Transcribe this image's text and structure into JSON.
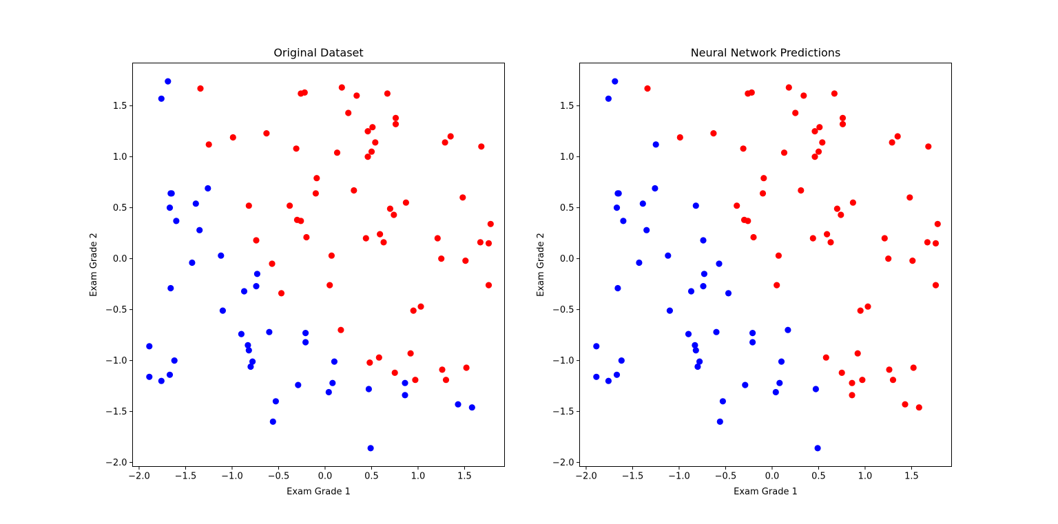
{
  "colors": {
    "class_0": "#0000ff",
    "class_1": "#ff0000",
    "axes": "#000000",
    "background": "#ffffff"
  },
  "chart_data": [
    {
      "type": "scatter",
      "title": "Original Dataset",
      "xlabel": "Exam Grade 1",
      "ylabel": "Exam Grade 2",
      "xlim": [
        -2.07,
        1.93
      ],
      "ylim": [
        -2.04,
        1.92
      ],
      "xticks": [
        -2.0,
        -1.5,
        -1.0,
        -0.5,
        0.0,
        0.5,
        1.0,
        1.5
      ],
      "xtick_labels": [
        "−2.0",
        "−1.5",
        "−1.0",
        "−0.5",
        "0.0",
        "0.5",
        "1.0",
        "1.5"
      ],
      "yticks": [
        -2.0,
        -1.5,
        -1.0,
        -0.5,
        0.0,
        0.5,
        1.0,
        1.5
      ],
      "ytick_labels": [
        "−2.0",
        "−1.5",
        "−1.0",
        "−0.5",
        "0.0",
        "0.5",
        "1.0",
        "1.5"
      ],
      "grid": false,
      "series": [
        {
          "color": "#0000ff",
          "x": [
            -1.69,
            -1.76,
            -1.65,
            -1.66,
            -1.67,
            -1.6,
            -1.39,
            -1.26,
            -1.35,
            -1.43,
            -1.12,
            -1.66,
            -1.1,
            -1.89,
            -1.89,
            -1.76,
            -1.67,
            -1.62,
            -0.87,
            -0.73,
            -0.74,
            -0.9,
            -0.83,
            -0.82,
            -0.78,
            -0.8,
            -0.6,
            -0.53,
            -0.56,
            -0.21,
            -0.21,
            -0.29,
            0.1,
            0.08,
            0.04,
            0.47,
            0.49,
            0.86,
            0.86,
            1.43,
            1.58
          ],
          "y": [
            1.74,
            1.57,
            0.64,
            0.64,
            0.5,
            0.37,
            0.54,
            0.69,
            0.28,
            -0.04,
            0.03,
            -0.29,
            -0.51,
            -0.86,
            -1.16,
            -1.2,
            -1.14,
            -1.0,
            -0.32,
            -0.15,
            -0.27,
            -0.74,
            -0.85,
            -0.9,
            -1.01,
            -1.06,
            -0.72,
            -1.4,
            -1.6,
            -0.73,
            -0.82,
            -1.24,
            -1.01,
            -1.22,
            -1.31,
            -1.28,
            -1.86,
            -1.22,
            -1.34,
            -1.43,
            -1.46
          ]
        },
        {
          "color": "#ff0000",
          "x": [
            -1.34,
            -1.25,
            -0.99,
            -0.63,
            -0.31,
            -0.26,
            -0.22,
            0.18,
            0.34,
            0.25,
            0.67,
            0.76,
            0.76,
            0.46,
            0.51,
            0.54,
            0.5,
            0.46,
            0.13,
            -0.09,
            -0.1,
            -0.82,
            -0.38,
            -0.3,
            -0.26,
            -0.74,
            -0.2,
            -0.57,
            -0.47,
            0.07,
            0.05,
            0.31,
            0.44,
            0.59,
            0.63,
            0.7,
            0.74,
            0.87,
            1.29,
            1.35,
            1.68,
            1.48,
            1.21,
            1.25,
            1.51,
            1.67,
            1.76,
            1.78,
            1.76,
            0.17,
            0.48,
            0.58,
            0.75,
            0.92,
            0.95,
            1.03,
            0.97,
            1.26,
            1.3,
            1.52
          ],
          "y": [
            1.67,
            1.12,
            1.19,
            1.23,
            1.08,
            1.62,
            1.63,
            1.68,
            1.6,
            1.43,
            1.62,
            1.38,
            1.32,
            1.25,
            1.29,
            1.14,
            1.05,
            1.0,
            1.04,
            0.79,
            0.64,
            0.52,
            0.52,
            0.38,
            0.37,
            0.18,
            0.21,
            -0.05,
            -0.34,
            0.03,
            -0.26,
            0.67,
            0.2,
            0.24,
            0.16,
            0.49,
            0.43,
            0.55,
            1.14,
            1.2,
            1.1,
            0.6,
            0.2,
            0.0,
            -0.02,
            0.16,
            0.15,
            0.34,
            -0.26,
            -0.7,
            -1.02,
            -0.97,
            -1.12,
            -0.93,
            -0.51,
            -0.47,
            -1.19,
            -1.09,
            -1.19,
            -1.07
          ]
        }
      ]
    },
    {
      "type": "scatter",
      "title": "Neural Network Predictions",
      "xlabel": "Exam Grade 1",
      "ylabel": "Exam Grade 2",
      "xlim": [
        -2.07,
        1.93
      ],
      "ylim": [
        -2.04,
        1.92
      ],
      "xticks": [
        -2.0,
        -1.5,
        -1.0,
        -0.5,
        0.0,
        0.5,
        1.0,
        1.5
      ],
      "xtick_labels": [
        "−2.0",
        "−1.5",
        "−1.0",
        "−0.5",
        "0.0",
        "0.5",
        "1.0",
        "1.5"
      ],
      "yticks": [
        -2.0,
        -1.5,
        -1.0,
        -0.5,
        0.0,
        0.5,
        1.0,
        1.5
      ],
      "ytick_labels": [
        "−2.0",
        "−1.5",
        "−1.0",
        "−0.5",
        "0.0",
        "0.5",
        "1.0",
        "1.5"
      ],
      "grid": false,
      "series": [
        {
          "color": "#0000ff",
          "x": [
            -1.69,
            -1.76,
            -1.65,
            -1.66,
            -1.67,
            -1.6,
            -1.39,
            -1.26,
            -1.35,
            -1.43,
            -1.12,
            -1.66,
            -1.1,
            -1.89,
            -1.89,
            -1.76,
            -1.67,
            -1.62,
            -0.87,
            -0.73,
            -0.74,
            -0.9,
            -0.83,
            -0.82,
            -0.78,
            -0.8,
            -0.6,
            -0.53,
            -0.56,
            -0.21,
            -0.21,
            -0.29,
            0.1,
            0.08,
            0.04,
            0.47,
            0.49,
            -1.25,
            -0.82,
            -0.74,
            -0.57,
            -0.47,
            0.17
          ],
          "y": [
            1.74,
            1.57,
            0.64,
            0.64,
            0.5,
            0.37,
            0.54,
            0.69,
            0.28,
            -0.04,
            0.03,
            -0.29,
            -0.51,
            -0.86,
            -1.16,
            -1.2,
            -1.14,
            -1.0,
            -0.32,
            -0.15,
            -0.27,
            -0.74,
            -0.85,
            -0.9,
            -1.01,
            -1.06,
            -0.72,
            -1.4,
            -1.6,
            -0.73,
            -0.82,
            -1.24,
            -1.01,
            -1.22,
            -1.31,
            -1.28,
            -1.86,
            1.12,
            0.52,
            0.18,
            -0.05,
            -0.34,
            -0.7
          ]
        },
        {
          "color": "#ff0000",
          "x": [
            -1.34,
            -0.99,
            -0.63,
            -0.31,
            -0.26,
            -0.22,
            0.18,
            0.34,
            0.25,
            0.67,
            0.76,
            0.76,
            0.46,
            0.51,
            0.54,
            0.5,
            0.46,
            0.13,
            -0.09,
            -0.1,
            -0.38,
            -0.3,
            -0.26,
            -0.2,
            0.07,
            0.05,
            0.31,
            0.44,
            0.59,
            0.63,
            0.7,
            0.74,
            0.87,
            1.29,
            1.35,
            1.68,
            1.48,
            1.21,
            1.25,
            1.51,
            1.67,
            1.76,
            1.78,
            1.76,
            0.58,
            0.75,
            0.92,
            0.95,
            1.03,
            0.97,
            1.26,
            1.3,
            1.52,
            0.86,
            0.86,
            1.43,
            1.58
          ],
          "y": [
            1.67,
            1.19,
            1.23,
            1.08,
            1.62,
            1.63,
            1.68,
            1.6,
            1.43,
            1.62,
            1.38,
            1.32,
            1.25,
            1.29,
            1.14,
            1.05,
            1.0,
            1.04,
            0.79,
            0.64,
            0.52,
            0.38,
            0.37,
            0.21,
            0.03,
            -0.26,
            0.67,
            0.2,
            0.24,
            0.16,
            0.49,
            0.43,
            0.55,
            1.14,
            1.2,
            1.1,
            0.6,
            0.2,
            0.0,
            -0.02,
            0.16,
            0.15,
            0.34,
            -0.26,
            -0.97,
            -1.12,
            -0.93,
            -0.51,
            -0.47,
            -1.19,
            -1.09,
            -1.19,
            -1.07,
            -1.22,
            -1.34,
            -1.43,
            -1.46
          ]
        }
      ]
    }
  ]
}
